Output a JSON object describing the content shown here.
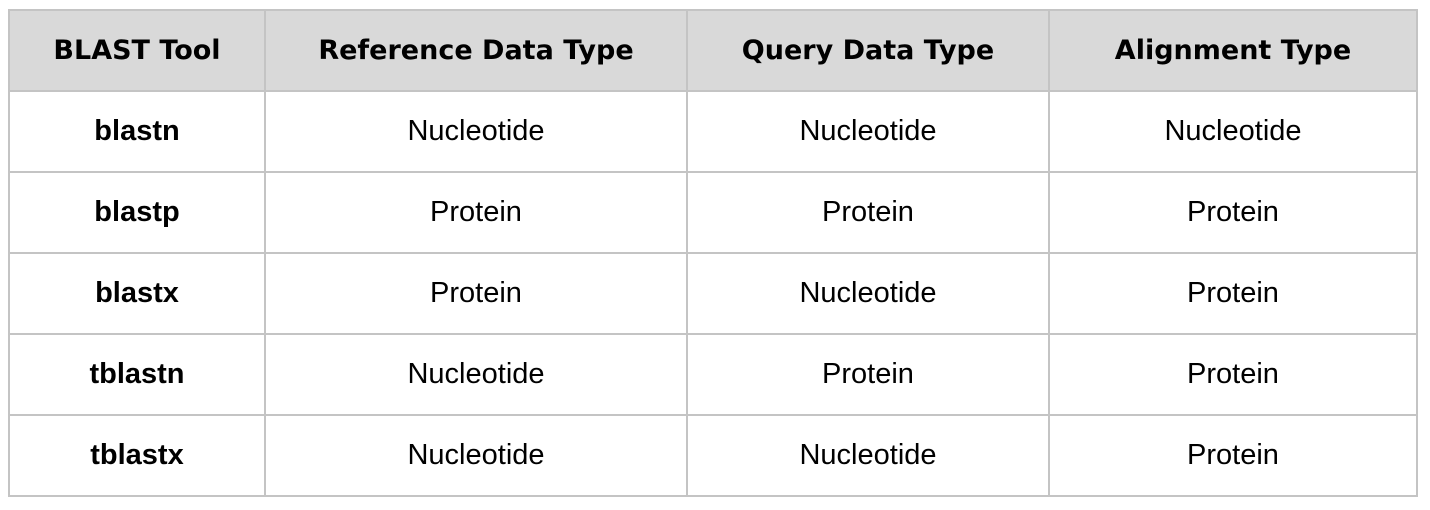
{
  "table": {
    "headers": [
      "BLAST Tool",
      "Reference Data Type",
      "Query Data Type",
      "Alignment Type"
    ],
    "rows": [
      [
        "blastn",
        "Nucleotide",
        "Nucleotide",
        "Nucleotide"
      ],
      [
        "blastp",
        "Protein",
        "Protein",
        "Protein"
      ],
      [
        "blastx",
        "Protein",
        "Nucleotide",
        "Protein"
      ],
      [
        "tblastn",
        "Nucleotide",
        "Protein",
        "Protein"
      ],
      [
        "tblastx",
        "Nucleotide",
        "Nucleotide",
        "Protein"
      ]
    ]
  },
  "colors": {
    "header_background": "#d9d9d9",
    "border": "#c4c4c4",
    "text": "#000000"
  }
}
